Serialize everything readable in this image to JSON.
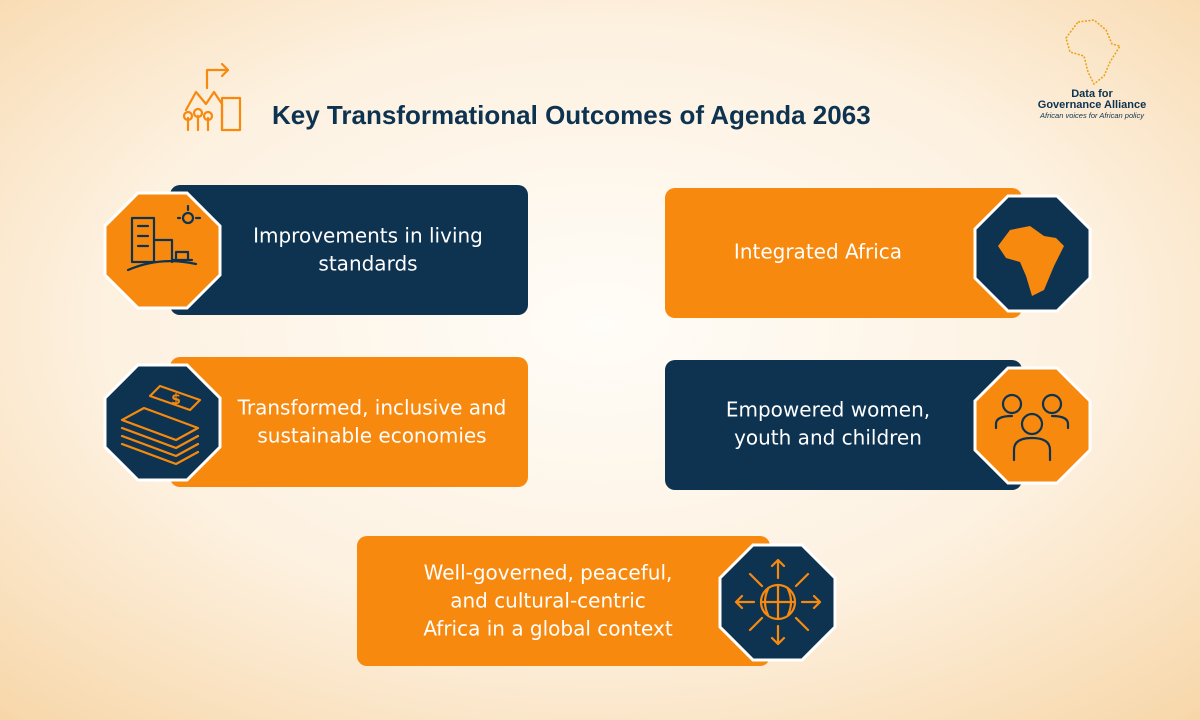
{
  "header": {
    "title": "Key Transformational Outcomes of Agenda 2063"
  },
  "logo": {
    "name": [
      "Data for",
      "Governance Alliance"
    ],
    "tagline": "African voices for African policy"
  },
  "cards": [
    {
      "lines": [
        "Improvements in living",
        "standards"
      ]
    },
    {
      "lines": [
        "Integrated Africa"
      ]
    },
    {
      "lines": [
        "Transformed, inclusive and",
        "sustainable economies"
      ]
    },
    {
      "lines": [
        "Empowered women,",
        "youth and children"
      ]
    },
    {
      "lines": [
        "Well-governed, peaceful,",
        "and cultural-centric",
        "Africa in a global context"
      ]
    }
  ]
}
